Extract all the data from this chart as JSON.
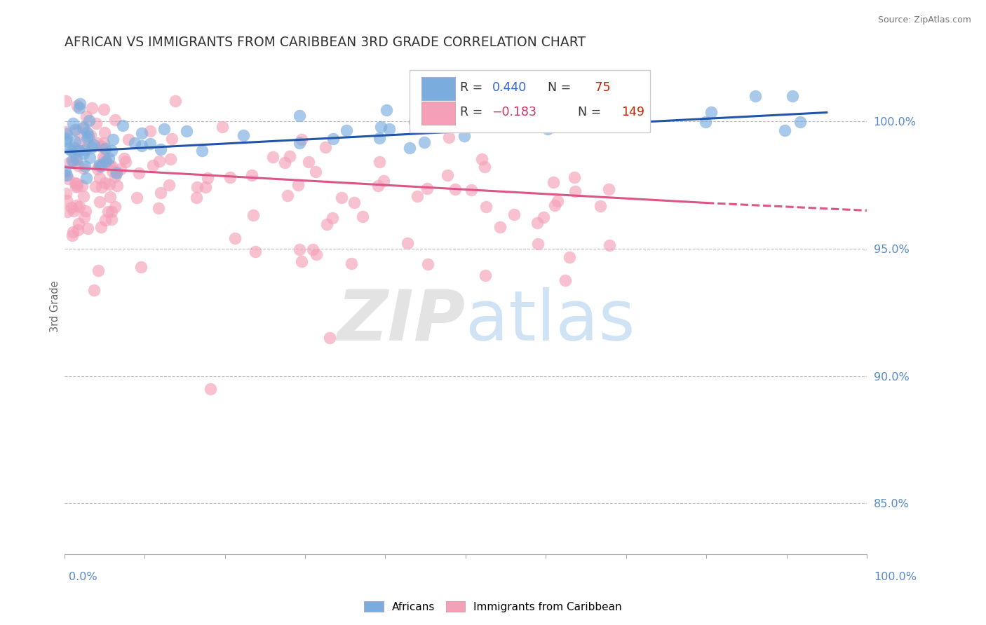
{
  "title": "AFRICAN VS IMMIGRANTS FROM CARIBBEAN 3RD GRADE CORRELATION CHART",
  "source": "Source: ZipAtlas.com",
  "ylabel": "3rd Grade",
  "xlim": [
    0.0,
    100.0
  ],
  "ylim": [
    83.0,
    102.5
  ],
  "yticks": [
    85.0,
    90.0,
    95.0,
    100.0
  ],
  "ytick_labels": [
    "85.0%",
    "90.0%",
    "95.0%",
    "100.0%"
  ],
  "blue_R": 0.44,
  "blue_N": 75,
  "pink_R": -0.183,
  "pink_N": 149,
  "blue_scatter_color": "#7AADDE",
  "pink_scatter_color": "#F4A0B8",
  "blue_line_color": "#2255AA",
  "pink_line_color": "#DD5588",
  "blue_text_color": "#3366CC",
  "pink_text_color": "#CC3366",
  "n_text_color": "#CC2200",
  "watermark_zip_color": "#CCCCCC",
  "watermark_atlas_color": "#AACCEE",
  "background_color": "#FFFFFF",
  "title_color": "#333333",
  "axis_text_color": "#5588CC",
  "seed": 7
}
